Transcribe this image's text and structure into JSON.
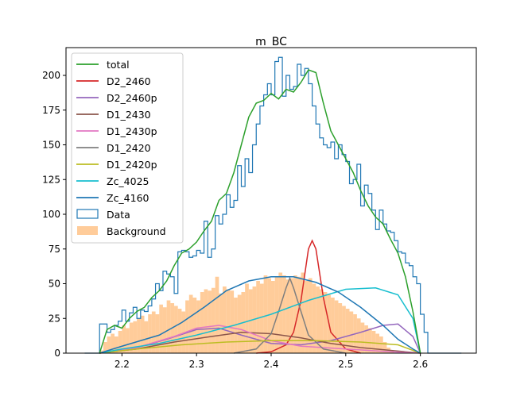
{
  "chart_data": {
    "type": "line",
    "title": "m_BC",
    "xlabel": "",
    "ylabel": "",
    "xlim": [
      2.125,
      2.675
    ],
    "ylim": [
      0,
      220
    ],
    "xticks": [
      2.2,
      2.3,
      2.4,
      2.5,
      2.6
    ],
    "yticks": [
      0,
      25,
      50,
      75,
      100,
      125,
      150,
      175,
      200
    ],
    "legend_position": "upper-left",
    "grid": false,
    "series": [
      {
        "name": "total",
        "style": "line",
        "color": "#2ca02c",
        "points": [
          [
            2.17,
            0
          ],
          [
            2.18,
            17
          ],
          [
            2.19,
            20
          ],
          [
            2.2,
            18
          ],
          [
            2.21,
            25
          ],
          [
            2.22,
            30
          ],
          [
            2.23,
            33
          ],
          [
            2.24,
            40
          ],
          [
            2.25,
            45
          ],
          [
            2.26,
            52
          ],
          [
            2.27,
            63
          ],
          [
            2.28,
            72
          ],
          [
            2.29,
            75
          ],
          [
            2.3,
            80
          ],
          [
            2.31,
            88
          ],
          [
            2.32,
            95
          ],
          [
            2.33,
            110
          ],
          [
            2.34,
            115
          ],
          [
            2.35,
            130
          ],
          [
            2.36,
            150
          ],
          [
            2.37,
            170
          ],
          [
            2.38,
            180
          ],
          [
            2.39,
            182
          ],
          [
            2.4,
            187
          ],
          [
            2.41,
            183
          ],
          [
            2.42,
            190
          ],
          [
            2.43,
            188
          ],
          [
            2.44,
            195
          ],
          [
            2.45,
            204
          ],
          [
            2.46,
            202
          ],
          [
            2.47,
            180
          ],
          [
            2.48,
            160
          ],
          [
            2.49,
            150
          ],
          [
            2.5,
            140
          ],
          [
            2.51,
            130
          ],
          [
            2.52,
            117
          ],
          [
            2.53,
            106
          ],
          [
            2.54,
            98
          ],
          [
            2.55,
            93
          ],
          [
            2.56,
            82
          ],
          [
            2.57,
            72
          ],
          [
            2.58,
            55
          ],
          [
            2.59,
            30
          ],
          [
            2.6,
            0
          ]
        ]
      },
      {
        "name": "D2_2460",
        "style": "line",
        "color": "#d62728",
        "points": [
          [
            2.38,
            0
          ],
          [
            2.4,
            1
          ],
          [
            2.42,
            6
          ],
          [
            2.43,
            15
          ],
          [
            2.44,
            38
          ],
          [
            2.45,
            75
          ],
          [
            2.455,
            81
          ],
          [
            2.46,
            75
          ],
          [
            2.47,
            40
          ],
          [
            2.48,
            15
          ],
          [
            2.5,
            3
          ],
          [
            2.52,
            0
          ]
        ]
      },
      {
        "name": "D2_2460p",
        "style": "line",
        "color": "#9467bd",
        "points": [
          [
            2.17,
            0
          ],
          [
            2.22,
            4
          ],
          [
            2.26,
            10
          ],
          [
            2.3,
            17
          ],
          [
            2.33,
            18
          ],
          [
            2.36,
            13
          ],
          [
            2.4,
            7
          ],
          [
            2.44,
            6
          ],
          [
            2.48,
            9
          ],
          [
            2.52,
            15
          ],
          [
            2.55,
            20
          ],
          [
            2.57,
            21
          ],
          [
            2.59,
            12
          ],
          [
            2.6,
            0
          ]
        ]
      },
      {
        "name": "D1_2430",
        "style": "line",
        "color": "#8c564b",
        "points": [
          [
            2.17,
            0
          ],
          [
            2.22,
            3
          ],
          [
            2.27,
            8
          ],
          [
            2.32,
            12
          ],
          [
            2.36,
            15
          ],
          [
            2.4,
            14
          ],
          [
            2.44,
            11
          ],
          [
            2.48,
            7
          ],
          [
            2.52,
            4
          ],
          [
            2.56,
            2
          ],
          [
            2.6,
            0
          ]
        ]
      },
      {
        "name": "D1_2430p",
        "style": "line",
        "color": "#e377c2",
        "points": [
          [
            2.17,
            0
          ],
          [
            2.22,
            4
          ],
          [
            2.27,
            12
          ],
          [
            2.3,
            18
          ],
          [
            2.33,
            20
          ],
          [
            2.36,
            17
          ],
          [
            2.4,
            9
          ],
          [
            2.44,
            5
          ],
          [
            2.5,
            3
          ],
          [
            2.56,
            1
          ],
          [
            2.6,
            0
          ]
        ]
      },
      {
        "name": "D1_2420",
        "style": "line",
        "color": "#7f7f7f",
        "points": [
          [
            2.35,
            0
          ],
          [
            2.38,
            3
          ],
          [
            2.4,
            14
          ],
          [
            2.41,
            30
          ],
          [
            2.42,
            47
          ],
          [
            2.425,
            54
          ],
          [
            2.43,
            47
          ],
          [
            2.44,
            30
          ],
          [
            2.45,
            13
          ],
          [
            2.47,
            3
          ],
          [
            2.5,
            0
          ]
        ]
      },
      {
        "name": "D1_2420p",
        "style": "line",
        "color": "#bcbd22",
        "points": [
          [
            2.17,
            0
          ],
          [
            2.22,
            3
          ],
          [
            2.28,
            6
          ],
          [
            2.34,
            8
          ],
          [
            2.4,
            9
          ],
          [
            2.46,
            9
          ],
          [
            2.52,
            8
          ],
          [
            2.57,
            6
          ],
          [
            2.6,
            0
          ]
        ]
      },
      {
        "name": "Zc_4025",
        "style": "line",
        "color": "#17becf",
        "points": [
          [
            2.17,
            0
          ],
          [
            2.2,
            3
          ],
          [
            2.25,
            7
          ],
          [
            2.3,
            13
          ],
          [
            2.35,
            20
          ],
          [
            2.4,
            28
          ],
          [
            2.45,
            38
          ],
          [
            2.5,
            46
          ],
          [
            2.54,
            47
          ],
          [
            2.57,
            42
          ],
          [
            2.59,
            25
          ],
          [
            2.6,
            0
          ]
        ]
      },
      {
        "name": "Zc_4160",
        "style": "line",
        "color": "#1f77b4",
        "points": [
          [
            2.17,
            0
          ],
          [
            2.2,
            5
          ],
          [
            2.25,
            13
          ],
          [
            2.28,
            22
          ],
          [
            2.31,
            33
          ],
          [
            2.34,
            45
          ],
          [
            2.37,
            52
          ],
          [
            2.4,
            55
          ],
          [
            2.43,
            55
          ],
          [
            2.46,
            51
          ],
          [
            2.49,
            44
          ],
          [
            2.52,
            33
          ],
          [
            2.55,
            20
          ],
          [
            2.57,
            10
          ],
          [
            2.59,
            3
          ],
          [
            2.6,
            0
          ]
        ]
      },
      {
        "name": "Data",
        "style": "step",
        "color": "#1f77b4",
        "edges_start": 2.15,
        "bin_width": 0.005,
        "values": [
          0,
          0,
          0,
          0,
          21,
          21,
          15,
          17,
          20,
          23,
          31,
          23,
          29,
          33,
          25,
          31,
          30,
          34,
          39,
          50,
          45,
          59,
          57,
          55,
          43,
          73,
          74,
          73,
          69,
          70,
          74,
          72,
          95,
          69,
          75,
          99,
          93,
          100,
          114,
          105,
          110,
          135,
          120,
          140,
          130,
          150,
          165,
          178,
          186,
          194,
          186,
          210,
          213,
          185,
          200,
          190,
          192,
          208,
          200,
          205,
          194,
          178,
          165,
          155,
          150,
          148,
          152,
          140,
          150,
          143,
          138,
          122,
          125,
          136,
          106,
          121,
          115,
          103,
          89,
          103,
          93,
          88,
          87,
          81,
          73,
          72,
          65,
          63,
          55,
          50,
          28,
          15,
          0,
          0,
          0,
          0,
          0,
          0,
          0,
          0,
          0
        ],
        "edges_end": 2.65
      },
      {
        "name": "Background",
        "style": "filled-hist",
        "color": "#ffbb78",
        "edges_start": 2.155,
        "bin_width": 0.005,
        "values": [
          0,
          0,
          0,
          2,
          8,
          12,
          14,
          12,
          16,
          20,
          18,
          22,
          23,
          25,
          27,
          23,
          28,
          30,
          28,
          35,
          33,
          38,
          36,
          34,
          32,
          30,
          38,
          42,
          40,
          38,
          44,
          46,
          45,
          47,
          55,
          43,
          48,
          46,
          45,
          40,
          42,
          44,
          50,
          46,
          48,
          52,
          50,
          56,
          54,
          52,
          55,
          58,
          56,
          53,
          54,
          56,
          55,
          58,
          52,
          54,
          50,
          48,
          46,
          44,
          42,
          40,
          38,
          36,
          34,
          32,
          30,
          28,
          25,
          22,
          20,
          18,
          16,
          14,
          12,
          8,
          4,
          2,
          0,
          0,
          0,
          0,
          0,
          0,
          0,
          0,
          0,
          0,
          0,
          0,
          0,
          0,
          0,
          0,
          0,
          0,
          0
        ]
      }
    ]
  }
}
